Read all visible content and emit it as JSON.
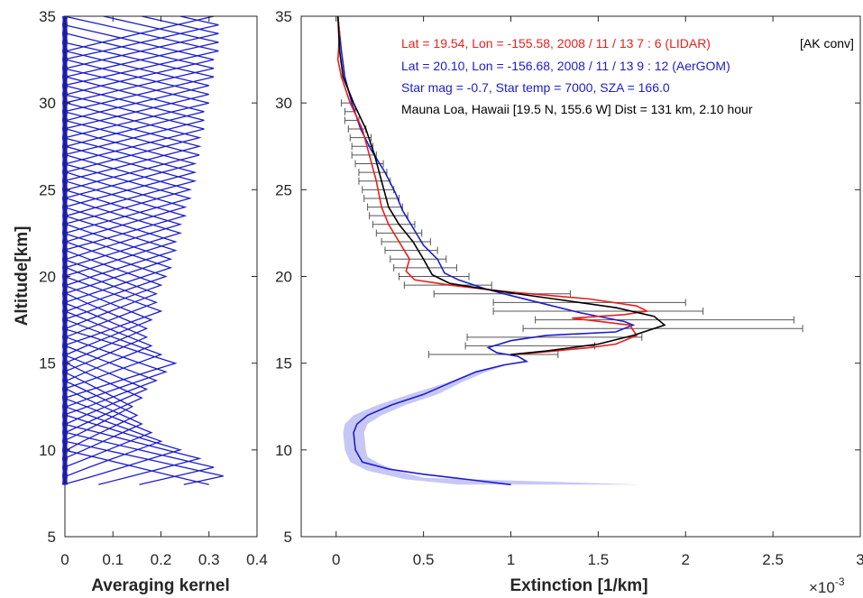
{
  "chart_data": [
    {
      "id": "averaging-kernel",
      "type": "line",
      "xlabel": "Averaging kernel",
      "ylabel": "Altitude[km]",
      "xlim": [
        0,
        0.4
      ],
      "ylim": [
        5,
        35
      ],
      "xticks": [
        "0",
        "0.1",
        "0.2",
        "0.3",
        "0.4"
      ],
      "yticks": [
        "5",
        "10",
        "15",
        "20",
        "25",
        "30",
        "35"
      ],
      "grid": false,
      "series_color": "#1c1ccc",
      "kernel_levels": [
        8,
        8.5,
        9,
        9.5,
        10,
        10.5,
        11,
        11.5,
        12,
        12.5,
        13,
        13.5,
        14,
        14.5,
        15,
        15.5,
        16,
        16.5,
        17,
        17.5,
        18,
        18.5,
        19,
        19.5,
        20,
        20.5,
        21,
        21.5,
        22,
        22.5,
        23,
        23.5,
        24,
        24.5,
        25,
        25.5,
        26,
        26.5,
        27,
        27.5,
        28,
        28.5,
        29,
        29.5,
        30,
        30.5,
        31,
        31.5,
        32,
        32.5,
        33,
        33.5,
        34,
        34.5,
        35
      ],
      "kernel_peaks": [
        0.3,
        0.33,
        0.31,
        0.28,
        0.24,
        0.2,
        0.18,
        0.16,
        0.15,
        0.14,
        0.16,
        0.17,
        0.19,
        0.21,
        0.23,
        0.2,
        0.18,
        0.17,
        0.17,
        0.18,
        0.2,
        0.19,
        0.19,
        0.2,
        0.21,
        0.22,
        0.22,
        0.23,
        0.23,
        0.24,
        0.24,
        0.25,
        0.25,
        0.26,
        0.26,
        0.27,
        0.27,
        0.27,
        0.28,
        0.28,
        0.28,
        0.29,
        0.29,
        0.29,
        0.3,
        0.3,
        0.3,
        0.31,
        0.31,
        0.31,
        0.32,
        0.32,
        0.32,
        0.32,
        0.31
      ],
      "kernel_width_km": 2.0
    },
    {
      "id": "extinction",
      "type": "line",
      "xlabel": "Extinction [1/km]",
      "x_multiplier": "×10",
      "x_multiplier_exp": "-3",
      "xlim": [
        -0.0002,
        0.003
      ],
      "ylim": [
        5,
        35
      ],
      "xticks": [
        "0",
        "0.5",
        "1",
        "1.5",
        "2",
        "2.5",
        "3"
      ],
      "yticks": [
        "5",
        "10",
        "15",
        "20",
        "25",
        "30",
        "35"
      ],
      "grid": false,
      "annotations": [
        {
          "text": "Lat = 19.54, Lon = -155.58, 2008 / 11 / 13 7 : 6 (LIDAR)",
          "color": "#e8201c"
        },
        {
          "text": "[AK conv]",
          "color": "#000000"
        },
        {
          "text": "Lat = 20.10, Lon = -156.68, 2008 / 11 / 13 9 : 12 (AerGOM)",
          "color": "#1c1ccc"
        },
        {
          "text": "Star mag = -0.7, Star temp = 7000, SZA = 166.0",
          "color": "#1c1ccc"
        },
        {
          "text": "Mauna Loa, Hawaii [19.5 N, 155.6 W] Dist = 131 km, 2.10 hour",
          "color": "#000000"
        }
      ],
      "series": [
        {
          "color": "#1c1ccc",
          "points": [
            [
              0.001,
              8
            ],
            [
              0.00075,
              8.3
            ],
            [
              0.0005,
              8.6
            ],
            [
              0.0003,
              8.9
            ],
            [
              0.00015,
              9.3
            ],
            [
              0.00011,
              10
            ],
            [
              0.0001,
              11
            ],
            [
              0.00012,
              11.5
            ],
            [
              0.00018,
              12
            ],
            [
              0.00032,
              12.6
            ],
            [
              0.0005,
              13.2
            ],
            [
              0.00066,
              13.9
            ],
            [
              0.0008,
              14.5
            ],
            [
              0.00096,
              14.9
            ],
            [
              0.00109,
              15.1
            ],
            [
              0.00104,
              15.4
            ],
            [
              0.00092,
              15.6
            ],
            [
              0.00087,
              15.9
            ],
            [
              0.001,
              16.3
            ],
            [
              0.0012,
              16.6
            ],
            [
              0.0016,
              16.8
            ],
            [
              0.0017,
              17.2
            ],
            [
              0.00165,
              17.4
            ],
            [
              0.0014,
              17.9
            ],
            [
              0.0012,
              18.4
            ],
            [
              0.001,
              18.9
            ],
            [
              0.00085,
              19.3
            ],
            [
              0.0007,
              19.8
            ],
            [
              0.00062,
              20.2
            ],
            [
              0.00058,
              21
            ],
            [
              0.0005,
              21.8
            ],
            [
              0.00044,
              22.8
            ],
            [
              0.00038,
              23.8
            ],
            [
              0.00034,
              24.8
            ],
            [
              0.00028,
              26
            ],
            [
              0.0002,
              27.3
            ],
            [
              0.00014,
              28.5
            ],
            [
              9e-05,
              30
            ],
            [
              5e-05,
              31.5
            ],
            [
              3e-05,
              33
            ],
            [
              2e-05,
              34
            ],
            [
              1e-05,
              35
            ]
          ]
        },
        {
          "color": "#e8201c",
          "points": [
            [
              0.00102,
              15.5
            ],
            [
              0.00125,
              15.7
            ],
            [
              0.00145,
              15.9
            ],
            [
              0.0016,
              16.1
            ],
            [
              0.00172,
              16.6
            ],
            [
              0.00168,
              17.2
            ],
            [
              0.00135,
              17.6
            ],
            [
              0.00165,
              17.8
            ],
            [
              0.00178,
              18
            ],
            [
              0.00172,
              18.3
            ],
            [
              0.00145,
              18.7
            ],
            [
              0.001,
              19.1
            ],
            [
              0.00065,
              19.5
            ],
            [
              0.00045,
              19.8
            ],
            [
              0.0004,
              20.3
            ],
            [
              0.00042,
              21
            ],
            [
              0.00036,
              22
            ],
            [
              0.0003,
              23
            ],
            [
              0.00026,
              24
            ],
            [
              0.00023,
              25.5
            ],
            [
              0.00019,
              27
            ],
            [
              0.00015,
              28.5
            ],
            [
              8e-05,
              30
            ],
            [
              3e-05,
              31.5
            ],
            [
              1e-05,
              32.5
            ],
            [
              2e-05,
              34
            ],
            [
              1e-05,
              35
            ]
          ]
        },
        {
          "color": "#000000",
          "points": [
            [
              0.001,
              15.5
            ],
            [
              0.0012,
              15.7
            ],
            [
              0.0015,
              16.1
            ],
            [
              0.0017,
              16.6
            ],
            [
              0.00188,
              17.2
            ],
            [
              0.00182,
              17.7
            ],
            [
              0.0016,
              18.2
            ],
            [
              0.00125,
              18.7
            ],
            [
              0.0009,
              19.2
            ],
            [
              0.00065,
              19.6
            ],
            [
              0.00055,
              20.1
            ],
            [
              0.0005,
              21
            ],
            [
              0.00044,
              22
            ],
            [
              0.00036,
              23
            ],
            [
              0.0003,
              24
            ],
            [
              0.00026,
              25.5
            ],
            [
              0.00022,
              27
            ],
            [
              0.00017,
              28.5
            ],
            [
              0.0001,
              30
            ],
            [
              4e-05,
              31.5
            ],
            [
              2e-05,
              33
            ],
            [
              1e-05,
              35
            ]
          ]
        }
      ],
      "error_bars": [
        {
          "y": 15.5,
          "x": 0.0009,
          "err": 0.00037
        },
        {
          "y": 16.0,
          "x": 0.00111,
          "err": 0.00037
        },
        {
          "y": 16.5,
          "x": 0.00125,
          "err": 0.0005
        },
        {
          "y": 17.0,
          "x": 0.00187,
          "err": 0.0008
        },
        {
          "y": 17.5,
          "x": 0.00188,
          "err": 0.00074
        },
        {
          "y": 18.0,
          "x": 0.0015,
          "err": 0.0006
        },
        {
          "y": 18.5,
          "x": 0.00145,
          "err": 0.00055
        },
        {
          "y": 19.0,
          "x": 0.00095,
          "err": 0.00039
        },
        {
          "y": 19.5,
          "x": 0.00064,
          "err": 0.00025
        },
        {
          "y": 20.0,
          "x": 0.00056,
          "err": 0.0002
        },
        {
          "y": 20.5,
          "x": 0.00051,
          "err": 0.00018
        },
        {
          "y": 21.0,
          "x": 0.00047,
          "err": 0.00016
        },
        {
          "y": 21.5,
          "x": 0.00043,
          "err": 0.00015
        },
        {
          "y": 22.0,
          "x": 0.0004,
          "err": 0.00014
        },
        {
          "y": 22.5,
          "x": 0.00036,
          "err": 0.00013
        },
        {
          "y": 23.0,
          "x": 0.00033,
          "err": 0.00012
        },
        {
          "y": 23.5,
          "x": 0.0003,
          "err": 0.00011
        },
        {
          "y": 24.0,
          "x": 0.00028,
          "err": 0.0001
        },
        {
          "y": 24.5,
          "x": 0.00026,
          "err": 0.0001
        },
        {
          "y": 25.0,
          "x": 0.00024,
          "err": 9e-05
        },
        {
          "y": 25.5,
          "x": 0.00022,
          "err": 9e-05
        },
        {
          "y": 26.0,
          "x": 0.00021,
          "err": 8e-05
        },
        {
          "y": 26.5,
          "x": 0.00019,
          "err": 8e-05
        },
        {
          "y": 27.0,
          "x": 0.00016,
          "err": 7e-05
        },
        {
          "y": 27.5,
          "x": 0.00015,
          "err": 6e-05
        },
        {
          "y": 28.0,
          "x": 0.00014,
          "err": 6e-05
        },
        {
          "y": 28.5,
          "x": 0.00012,
          "err": 5e-05
        },
        {
          "y": 29.0,
          "x": 9e-05,
          "err": 4e-05
        },
        {
          "y": 29.5,
          "x": 8e-05,
          "err": 3e-05
        },
        {
          "y": 30.0,
          "x": 6e-05,
          "err": 3e-05
        }
      ],
      "error_bar_color": "#555555",
      "uncertainty_band": {
        "color": "#9999ee",
        "points": [
          [
            0.00175,
            8
          ],
          [
            0.0005,
            8.4
          ],
          [
            0.00035,
            8.8
          ],
          [
            0.00025,
            9.2
          ],
          [
            0.00018,
            9.6
          ],
          [
            0.00017,
            10
          ],
          [
            0.00016,
            11
          ],
          [
            0.00018,
            11.5
          ],
          [
            0.00026,
            12
          ],
          [
            0.0004,
            12.6
          ],
          [
            0.00058,
            13.2
          ],
          [
            0.00072,
            13.9
          ],
          [
            0.00086,
            14.5
          ],
          [
            0.00098,
            14.9
          ],
          [
            0.00095,
            14.9
          ],
          [
            0.0008,
            14.5
          ],
          [
            0.00064,
            13.9
          ],
          [
            0.00042,
            13.2
          ],
          [
            0.00024,
            12.6
          ],
          [
            0.0001,
            12
          ],
          [
            5e-05,
            11.5
          ],
          [
            4e-05,
            11
          ],
          [
            5e-05,
            10
          ],
          [
            8e-05,
            9.3
          ],
          [
            0.00018,
            8.8
          ],
          [
            0.0004,
            8.3
          ],
          [
            0.0007,
            8
          ]
        ]
      }
    }
  ]
}
